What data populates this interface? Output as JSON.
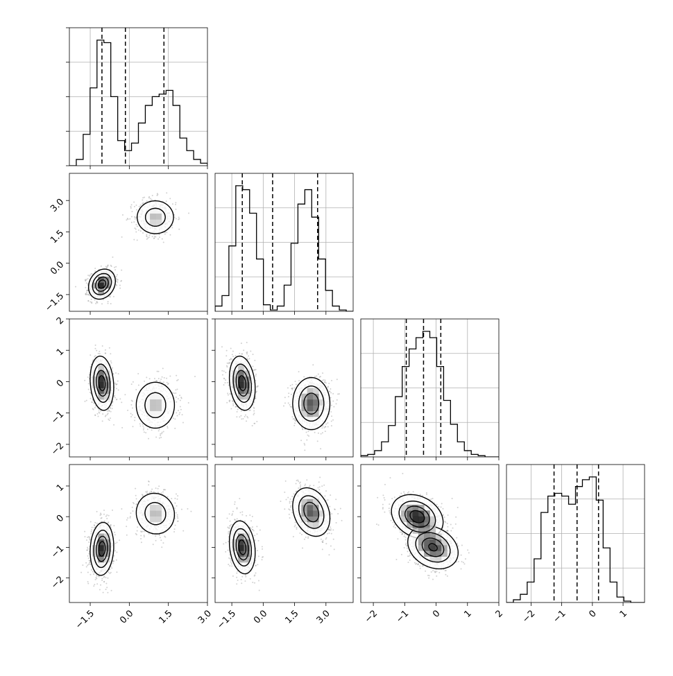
{
  "chart_data": {
    "type": "corner",
    "parameters": 4,
    "grid": true,
    "quantile_lines": "dashed",
    "axes": [
      {
        "id": "p0",
        "range": [
          -2.3,
          3.0
        ],
        "ticks": [
          -1.5,
          0.0,
          1.5,
          3.0
        ],
        "tick_labels": [
          "−1.5",
          "0.0",
          "1.5",
          "3.0"
        ],
        "quantiles": [
          -1.05,
          -0.15,
          1.33
        ]
      },
      {
        "id": "p1",
        "range": [
          -2.3,
          4.3
        ],
        "ticks": [
          -1.5,
          0.0,
          1.5,
          3.0
        ],
        "tick_labels": [
          "−1.5",
          "0.0",
          "1.5",
          "3.0"
        ],
        "quantiles": [
          -1.0,
          0.45,
          2.6
        ]
      },
      {
        "id": "p2",
        "range": [
          -2.4,
          2.0
        ],
        "ticks": [
          -2,
          -1,
          0,
          1,
          2
        ],
        "tick_labels": [
          "−2",
          "−1",
          "0",
          "1",
          "2"
        ],
        "quantiles": [
          -0.95,
          -0.4,
          0.15
        ]
      },
      {
        "id": "p3",
        "range": [
          -2.8,
          1.7
        ],
        "ticks": [
          -2,
          -1,
          0,
          1
        ],
        "tick_labels": [
          "−2",
          "−1",
          "0",
          "1"
        ],
        "quantiles": [
          -1.25,
          -0.5,
          0.2
        ]
      }
    ],
    "marginals": [
      {
        "param": 0,
        "bin_start": -2.3,
        "bin_width": 0.265,
        "counts": [
          0,
          0.05,
          0.25,
          0.62,
          1.0,
          0.98,
          0.55,
          0.2,
          0.12,
          0.18,
          0.34,
          0.48,
          0.55,
          0.57,
          0.6,
          0.48,
          0.22,
          0.12,
          0.05,
          0.02
        ]
      },
      {
        "param": 1,
        "bin_start": -2.3,
        "bin_width": 0.33,
        "counts": [
          0.04,
          0.12,
          0.5,
          0.96,
          0.93,
          0.75,
          0.4,
          0.05,
          0.01,
          0.04,
          0.2,
          0.52,
          0.82,
          0.93,
          0.72,
          0.4,
          0.16,
          0.04,
          0.01,
          0
        ]
      },
      {
        "param": 2,
        "bin_start": -2.4,
        "bin_width": 0.22,
        "counts": [
          0.01,
          0.02,
          0.05,
          0.12,
          0.25,
          0.48,
          0.72,
          0.86,
          0.95,
          1.0,
          0.95,
          0.72,
          0.45,
          0.26,
          0.12,
          0.05,
          0.02,
          0.01,
          0,
          0
        ]
      },
      {
        "param": 3,
        "bin_start": -2.8,
        "bin_width": 0.225,
        "counts": [
          0,
          0.02,
          0.06,
          0.15,
          0.32,
          0.66,
          0.78,
          0.8,
          0.78,
          0.72,
          0.85,
          0.9,
          0.92,
          0.75,
          0.4,
          0.15,
          0.04,
          0.01,
          0,
          0
        ]
      }
    ],
    "joint": [
      {
        "x": 0,
        "y": 1,
        "clusters": [
          {
            "mean": [
              -1.05,
              -1.0
            ],
            "sd": [
              0.25,
              0.35
            ],
            "rho": 0.2,
            "weight": 1.0
          },
          {
            "mean": [
              1.0,
              2.2
            ],
            "sd": [
              0.4,
              0.45
            ],
            "rho": 0.0,
            "weight": 0.55
          }
        ]
      },
      {
        "x": 0,
        "y": 2,
        "clusters": [
          {
            "mean": [
              -1.05,
              -0.05
            ],
            "sd": [
              0.22,
              0.42
            ],
            "rho": -0.15,
            "weight": 1.0
          },
          {
            "mean": [
              1.0,
              -0.75
            ],
            "sd": [
              0.42,
              0.42
            ],
            "rho": 0.0,
            "weight": 0.55
          }
        ]
      },
      {
        "x": 0,
        "y": 3,
        "clusters": [
          {
            "mean": [
              -1.05,
              -1.05
            ],
            "sd": [
              0.22,
              0.42
            ],
            "rho": 0.1,
            "weight": 1.0
          },
          {
            "mean": [
              1.0,
              0.1
            ],
            "sd": [
              0.42,
              0.38
            ],
            "rho": -0.05,
            "weight": 0.55
          }
        ]
      },
      {
        "x": 1,
        "y": 2,
        "clusters": [
          {
            "mean": [
              -1.0,
              -0.05
            ],
            "sd": [
              0.3,
              0.42
            ],
            "rho": -0.2,
            "weight": 1.0
          },
          {
            "mean": [
              2.3,
              -0.7
            ],
            "sd": [
              0.45,
              0.42
            ],
            "rho": 0.0,
            "weight": 0.85
          }
        ]
      },
      {
        "x": 1,
        "y": 3,
        "clusters": [
          {
            "mean": [
              -1.0,
              -1.0
            ],
            "sd": [
              0.3,
              0.42
            ],
            "rho": -0.2,
            "weight": 1.0
          },
          {
            "mean": [
              2.3,
              0.15
            ],
            "sd": [
              0.45,
              0.4
            ],
            "rho": -0.25,
            "weight": 0.85
          }
        ]
      },
      {
        "x": 2,
        "y": 3,
        "clusters": [
          {
            "mean": [
              -0.6,
              0.0
            ],
            "sd": [
              0.4,
              0.35
            ],
            "rho": -0.25,
            "weight": 1.0
          },
          {
            "mean": [
              -0.1,
              -1.0
            ],
            "sd": [
              0.4,
              0.35
            ],
            "rho": -0.25,
            "weight": 0.9
          }
        ]
      }
    ]
  }
}
